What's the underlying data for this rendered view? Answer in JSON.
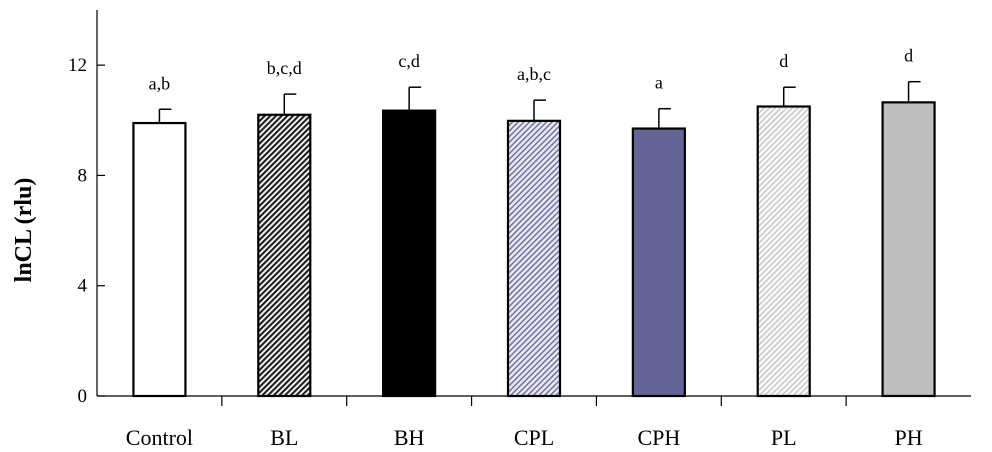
{
  "chart_data": {
    "type": "bar",
    "title": "",
    "xlabel": "",
    "ylabel": "lnCL (rlu)",
    "ylim": [
      0,
      14
    ],
    "yticks": [
      0,
      4,
      8,
      12
    ],
    "ytick_labels": [
      "0",
      "4",
      "8",
      "12"
    ],
    "grid": false,
    "categories": [
      "Control",
      "BL",
      "BH",
      "CPL",
      "CPH",
      "PL",
      "PH"
    ],
    "values": [
      9.9,
      10.2,
      10.35,
      9.98,
      9.7,
      10.5,
      10.65
    ],
    "errors": [
      0.5,
      0.75,
      0.85,
      0.75,
      0.72,
      0.7,
      0.75
    ],
    "significance_labels": [
      "a,b",
      "b,c,d",
      "c,d",
      "a,b,c",
      "a",
      "d",
      "d"
    ],
    "bar_styles": [
      {
        "fill": "#ffffff",
        "pattern": "none"
      },
      {
        "fill": "#ffffff",
        "pattern": "dense-diagonal-dark"
      },
      {
        "fill": "#000000",
        "pattern": "none"
      },
      {
        "fill": "#ffffff",
        "pattern": "diagonal-lavender"
      },
      {
        "fill": "#636596",
        "pattern": "none"
      },
      {
        "fill": "#f4f4f4",
        "pattern": "light-diagonal-gray"
      },
      {
        "fill": "#bdbdbd",
        "pattern": "none"
      }
    ]
  }
}
